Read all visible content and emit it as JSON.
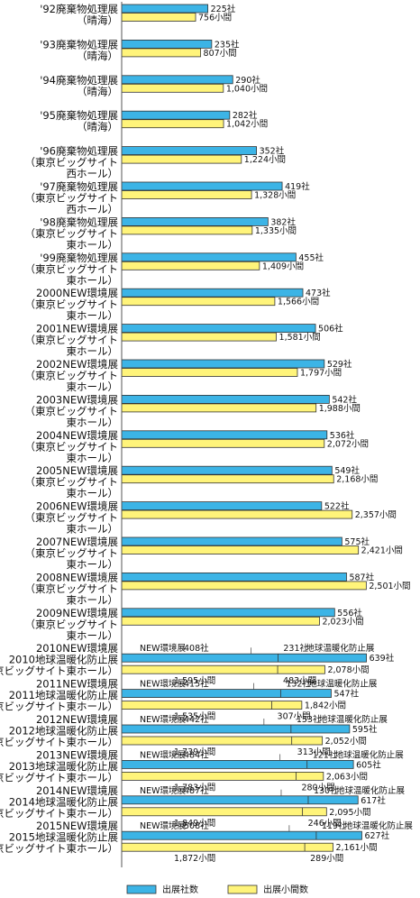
{
  "colors": {
    "exhibitors": "#3cb4e6",
    "booths": "#fff47a",
    "stroke": "#333333"
  },
  "legend": {
    "exhibitors": "出展社数",
    "booths": "出展小間数"
  },
  "chart_data": {
    "type": "bar",
    "orientation": "horizontal",
    "grid": false,
    "legend_position": "bottom",
    "title": "",
    "xlabel": "",
    "ylabel": "",
    "categories": [
      [
        "'92廃棄物処理展",
        "（晴海）"
      ],
      [
        "'93廃棄物処理展",
        "（晴海）"
      ],
      [
        "'94廃棄物処理展",
        "（晴海）"
      ],
      [
        "'95廃棄物処理展",
        "（晴海）"
      ],
      [
        "'96廃棄物処理展",
        "（東京ビッグサイト",
        "西ホール）"
      ],
      [
        "'97廃棄物処理展",
        "（東京ビッグサイト",
        "西ホール）"
      ],
      [
        "'98廃棄物処理展",
        "（東京ビッグサイト",
        "東ホール）"
      ],
      [
        "'99廃棄物処理展",
        "（東京ビッグサイト",
        "東ホール）"
      ],
      [
        "2000NEW環境展",
        "（東京ビッグサイト",
        "東ホール）"
      ],
      [
        "2001NEW環境展",
        "（東京ビッグサイト",
        "東ホール）"
      ],
      [
        "2002NEW環境展",
        "（東京ビッグサイト",
        "東ホール）"
      ],
      [
        "2003NEW環境展",
        "（東京ビッグサイト",
        "東ホール）"
      ],
      [
        "2004NEW環境展",
        "（東京ビッグサイト",
        "東ホール）"
      ],
      [
        "2005NEW環境展",
        "（東京ビッグサイト",
        "東ホール）"
      ],
      [
        "2006NEW環境展",
        "（東京ビッグサイト",
        "東ホール）"
      ],
      [
        "2007NEW環境展",
        "（東京ビッグサイト",
        "東ホール）"
      ],
      [
        "2008NEW環境展",
        "（東京ビッグサイト",
        "東ホール）"
      ],
      [
        "2009NEW環境展",
        "（東京ビッグサイト",
        "東ホール）"
      ],
      [
        "2010NEW環境展",
        "2010地球温暖化防止展",
        "（東京ビッグサイト東ホール）"
      ],
      [
        "2011NEW環境展",
        "2011地球温暖化防止展",
        "（東京ビッグサイト東ホール）"
      ],
      [
        "2012NEW環境展",
        "2012地球温暖化防止展",
        "（東京ビッグサイト東ホール）"
      ],
      [
        "2013NEW環境展",
        "2013地球温暖化防止展",
        "（東京ビッグサイト東ホール）"
      ],
      [
        "2014NEW環境展",
        "2014地球温暖化防止展",
        "（東京ビッグサイト東ホール）"
      ],
      [
        "2015NEW環境展",
        "2015地球温暖化防止展",
        "（東京ビッグサイト東ホール）"
      ]
    ],
    "series": [
      {
        "name": "出展社数",
        "unit": "社",
        "values": [
          225,
          235,
          290,
          282,
          352,
          419,
          382,
          455,
          473,
          506,
          529,
          542,
          536,
          549,
          522,
          575,
          587,
          556,
          639,
          547,
          595,
          605,
          617,
          627
        ],
        "labels": [
          "225社",
          "235社",
          "290社",
          "282社",
          "352社",
          "419社",
          "382社",
          "455社",
          "473社",
          "506社",
          "529社",
          "542社",
          "536社",
          "549社",
          "522社",
          "575社",
          "587社",
          "556社",
          "639社",
          "547社",
          "595社",
          "605社",
          "617社",
          "627社"
        ]
      },
      {
        "name": "出展小間数",
        "unit": "小間",
        "values": [
          756,
          807,
          1040,
          1042,
          1224,
          1328,
          1335,
          1409,
          1566,
          1581,
          1797,
          1988,
          2072,
          2168,
          2357,
          2421,
          2501,
          2023,
          2078,
          1842,
          2052,
          2063,
          2095,
          2161
        ],
        "labels": [
          "756小間",
          "807小間",
          "1,040小間",
          "1,042小間",
          "1,224小間",
          "1,328小間",
          "1,335小間",
          "1,409小間",
          "1,566小間",
          "1,581小間",
          "1,797小間",
          "1,988小間",
          "2,072小間",
          "2,168小間",
          "2,357小間",
          "2,421小間",
          "2,501小間",
          "2,023小間",
          "2,078小間",
          "1,842小間",
          "2,052小間",
          "2,063小間",
          "2,095小間",
          "2,161小間"
        ]
      }
    ],
    "breakdown": [
      {
        "row": 18,
        "exhibitors": {
          "new": "NEW環境展",
          "new_value": "408社",
          "global": "地球温暖化防止展",
          "global_value": "231社",
          "split": 408
        },
        "booths": {
          "new_value": "1,595小間",
          "global_value": "483小間",
          "split": 1595
        }
      },
      {
        "row": 19,
        "exhibitors": {
          "new": "NEW環境展",
          "new_value": "415社",
          "global": "地球温暖化防止展",
          "global_value": "132社",
          "split": 415
        },
        "booths": {
          "new_value": "1,535小間",
          "global_value": "307小間",
          "split": 1535
        }
      },
      {
        "row": 20,
        "exhibitors": {
          "new": "NEW環境展",
          "new_value": "442社",
          "global": "地球温暖化防止展",
          "global_value": "153社",
          "split": 442
        },
        "booths": {
          "new_value": "1,739小間",
          "global_value": "313小間",
          "split": 1739
        }
      },
      {
        "row": 21,
        "exhibitors": {
          "new": "NEW環境展",
          "new_value": "484社",
          "global": "地球温暖化防止展",
          "global_value": "121社",
          "split": 484
        },
        "booths": {
          "new_value": "1,783小間",
          "global_value": "280小間",
          "split": 1783
        }
      },
      {
        "row": 22,
        "exhibitors": {
          "new": "NEW環境展",
          "new_value": "487社",
          "global": "地球温暖化防止展",
          "global_value": "130社",
          "split": 487
        },
        "booths": {
          "new_value": "1,849小間",
          "global_value": "246小間",
          "split": 1849
        }
      },
      {
        "row": 23,
        "exhibitors": {
          "new": "NEW環境展",
          "new_value": "508社",
          "global": "地球温暖化防止展",
          "global_value": "119社",
          "split": 508
        },
        "booths": {
          "new_value": "1,872小間",
          "global_value": "289小間",
          "split": 1872
        }
      }
    ]
  }
}
